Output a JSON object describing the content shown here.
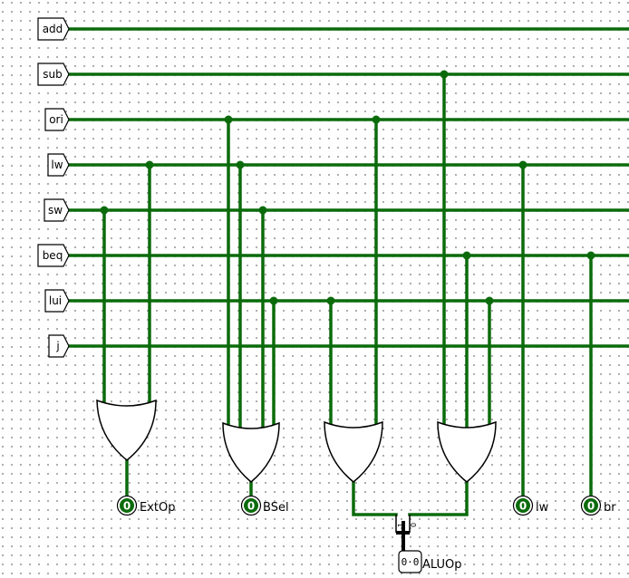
{
  "inputs": {
    "add": "add",
    "sub": "sub",
    "ori": "ori",
    "lw": "lw",
    "sw": "sw",
    "beq": "beq",
    "lui": "lui",
    "j": "j"
  },
  "outputs": {
    "extop": {
      "label": "ExtOp",
      "value": "0"
    },
    "bsel": {
      "label": "BSel",
      "value": "0"
    },
    "lw": {
      "label": "lw",
      "value": "0"
    },
    "br": {
      "label": "br",
      "value": "0"
    },
    "aluop": {
      "label": "ALUOp",
      "value": "0·0"
    }
  },
  "splitter": {
    "bit0": "1",
    "bit1": "0"
  },
  "colors": {
    "wire": "#0b6b0b",
    "grid_dot": "#9a9a9a",
    "background": "#ffffff"
  }
}
